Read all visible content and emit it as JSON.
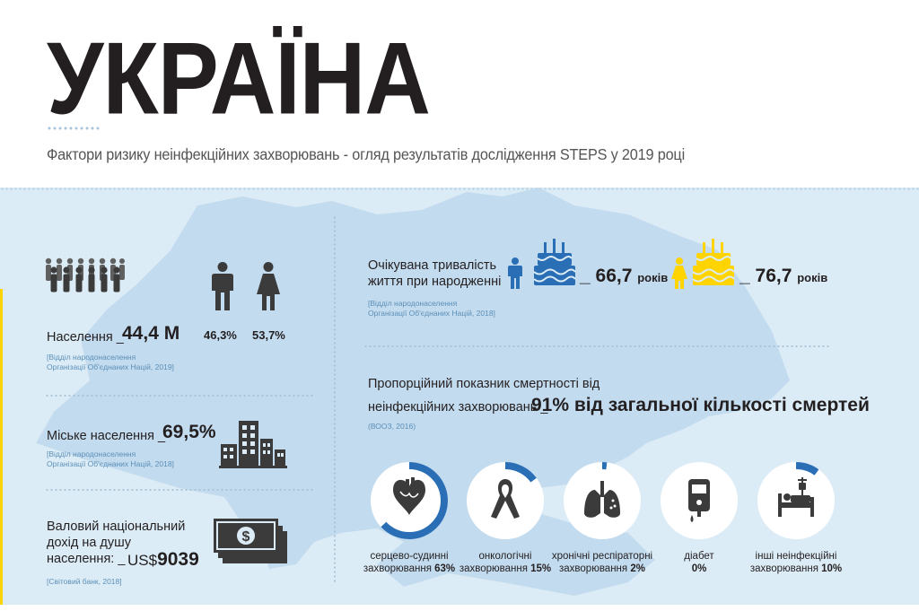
{
  "header": {
    "title": "УКРАЇНА",
    "subtitle": "Фактори ризику неінфекційних захворювань - огляд результатів дослідження STEPS у 2019 році"
  },
  "population": {
    "label": "Населення _",
    "value": "44,4 М",
    "male_pct": "46,3%",
    "female_pct": "53,7%",
    "source_line1": "[Відділ народонаселення",
    "source_line2": "Організації Об'єднаних Націй, 2019]"
  },
  "urban": {
    "label": "Міське населення _",
    "value": "69,5%",
    "source_line1": "[Відділ народонаселення",
    "source_line2": "Організації Об'єднаних Націй, 2018]"
  },
  "gni": {
    "label_line1": "Валовий національний",
    "label_line2": "дохід на душу",
    "label_line3": "населення: _",
    "currency": "US$",
    "value": "9039",
    "source": "[Світовий банк, 2018]"
  },
  "life_expectancy": {
    "label_line1": "Очікувана тривалість",
    "label_line2": "життя при народженні",
    "male_value": "_ 66,7",
    "male_unit": "років",
    "female_value": "_ 76,7",
    "female_unit": "років",
    "source_line1": "[Відділ народонаселення",
    "source_line2": "Організації Об'єднаних Націй, 2018]"
  },
  "mortality": {
    "label_line1": "Пропорційний показник смертності від",
    "label_line2": "неінфекційних захворювань _",
    "value": "91% від загальної кількості смертей",
    "source": "(ВООЗ, 2016)"
  },
  "causes": [
    {
      "name": "cardiovascular",
      "line1": "серцево-судинні",
      "line2": "захворювання",
      "pct_label": "63%",
      "fraction": 0.63,
      "icon": "heart-icon"
    },
    {
      "name": "cancer",
      "line1": "онкологічні",
      "line2": "захворювання",
      "pct_label": "15%",
      "fraction": 0.15,
      "icon": "ribbon-icon"
    },
    {
      "name": "respiratory",
      "line1": "хронічні респіраторні",
      "line2": "захворювання",
      "pct_label": "2%",
      "fraction": 0.02,
      "icon": "lungs-icon"
    },
    {
      "name": "diabetes",
      "line1": "діабет",
      "line2": "",
      "pct_label": "0%",
      "fraction": 0.0,
      "icon": "glucometer-icon"
    },
    {
      "name": "other",
      "line1": "інші неінфекційні",
      "line2": "захворювання",
      "pct_label": "10%",
      "fraction": 0.1,
      "icon": "hospital-bed-icon"
    }
  ],
  "colors": {
    "ring_accent": "#2a6eb5",
    "ring_base": "#ffffff",
    "male_blue": "#2a6eb5",
    "female_yellow": "#ffd400",
    "panel_bg": "#dcecf6",
    "map": "#c3dbee",
    "source_text": "#5b8fb8"
  }
}
